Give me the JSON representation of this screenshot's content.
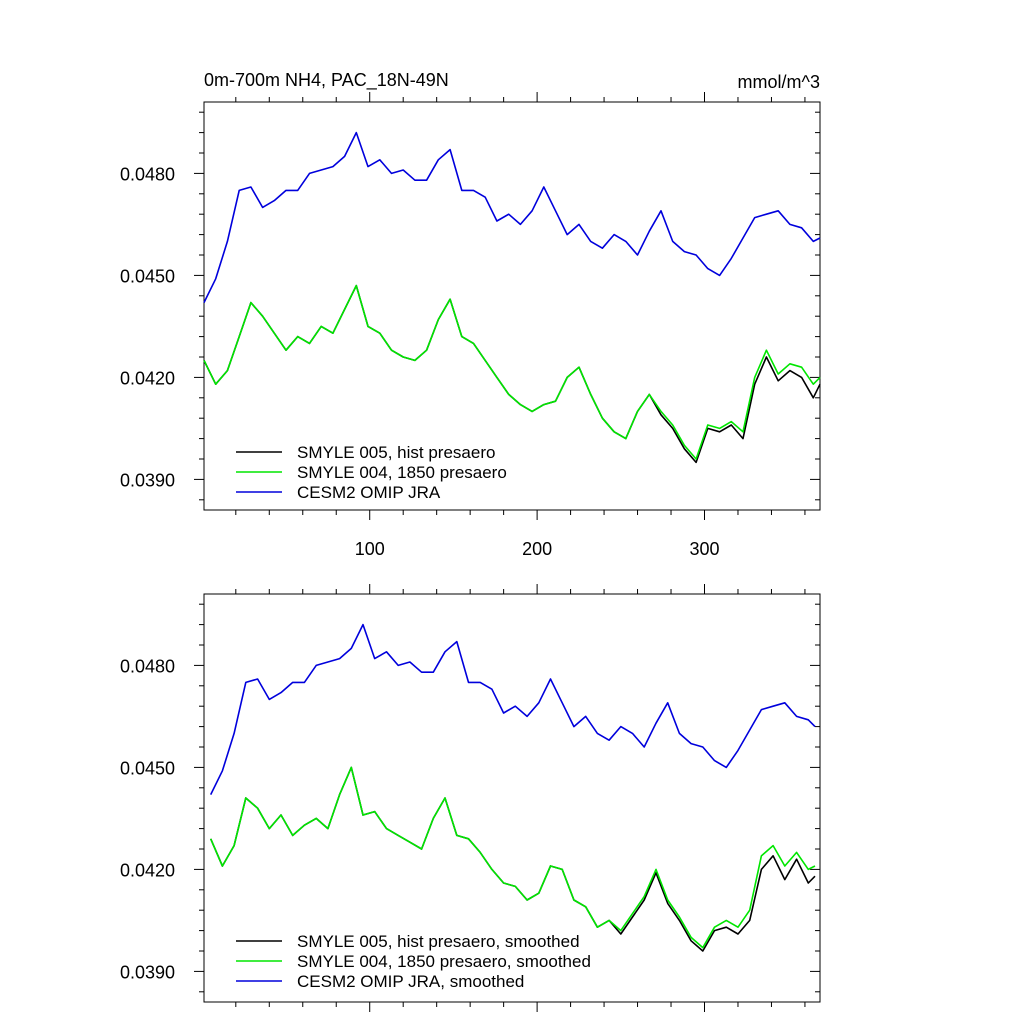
{
  "colors": {
    "black": "#000000",
    "green": "#00e600",
    "blue": "#0000dc"
  },
  "chart_data": [
    {
      "type": "line",
      "title": "0m-700m NH4, PAC_18N-49N",
      "units": "mmol/m^3",
      "xlim": [
        1,
        369
      ],
      "ylim": [
        0.0381,
        0.0501
      ],
      "xticks": [
        100,
        200,
        300
      ],
      "xtick_labels": [
        "100",
        "200",
        "300"
      ],
      "yticks": [
        0.039,
        0.042,
        0.045,
        0.048
      ],
      "ytick_labels": [
        "0.0390",
        "0.0420",
        "0.0450",
        "0.0480"
      ],
      "legend": "bottom-left",
      "grid": false,
      "x": [
        1,
        8,
        15,
        22,
        29,
        36,
        43,
        50,
        57,
        64,
        71,
        78,
        85,
        92,
        99,
        106,
        113,
        120,
        127,
        134,
        141,
        148,
        155,
        162,
        169,
        176,
        183,
        190,
        197,
        204,
        211,
        218,
        225,
        232,
        239,
        246,
        253,
        260,
        267,
        274,
        281,
        288,
        295,
        302,
        309,
        316,
        323,
        330,
        337,
        344,
        351,
        358,
        365,
        369
      ],
      "series": [
        {
          "name": "SMYLE 005, hist presaero",
          "color": "#000000",
          "values": [
            0.0425,
            0.0418,
            0.0422,
            0.0432,
            0.0442,
            0.0438,
            0.0433,
            0.0428,
            0.0432,
            0.043,
            0.0435,
            0.0433,
            0.044,
            0.0447,
            0.0435,
            0.0433,
            0.0428,
            0.0426,
            0.0425,
            0.0428,
            0.0437,
            0.0443,
            0.0432,
            0.043,
            0.0425,
            0.042,
            0.0415,
            0.0412,
            0.041,
            0.0412,
            0.0413,
            0.042,
            0.0423,
            0.0415,
            0.0408,
            0.0404,
            0.0402,
            0.041,
            0.0415,
            0.0409,
            0.0405,
            0.0399,
            0.0395,
            0.0405,
            0.0404,
            0.0406,
            0.0402,
            0.0418,
            0.0426,
            0.0419,
            0.0422,
            0.042,
            0.0414,
            0.0418
          ]
        },
        {
          "name": "SMYLE 004, 1850 presaero",
          "color": "#00e600",
          "values": [
            0.0425,
            0.0418,
            0.0422,
            0.0432,
            0.0442,
            0.0438,
            0.0433,
            0.0428,
            0.0432,
            0.043,
            0.0435,
            0.0433,
            0.044,
            0.0447,
            0.0435,
            0.0433,
            0.0428,
            0.0426,
            0.0425,
            0.0428,
            0.0437,
            0.0443,
            0.0432,
            0.043,
            0.0425,
            0.042,
            0.0415,
            0.0412,
            0.041,
            0.0412,
            0.0413,
            0.042,
            0.0423,
            0.0415,
            0.0408,
            0.0404,
            0.0402,
            0.041,
            0.0415,
            0.041,
            0.0406,
            0.04,
            0.0396,
            0.0406,
            0.0405,
            0.0407,
            0.0404,
            0.042,
            0.0428,
            0.0421,
            0.0424,
            0.0423,
            0.0418,
            0.042
          ]
        },
        {
          "name": "CESM2 OMIP JRA",
          "color": "#0000dc",
          "values": [
            0.0442,
            0.0449,
            0.046,
            0.0475,
            0.0476,
            0.047,
            0.0472,
            0.0475,
            0.0475,
            0.048,
            0.0481,
            0.0482,
            0.0485,
            0.0492,
            0.0482,
            0.0484,
            0.048,
            0.0481,
            0.0478,
            0.0478,
            0.0484,
            0.0487,
            0.0475,
            0.0475,
            0.0473,
            0.0466,
            0.0468,
            0.0465,
            0.0469,
            0.0476,
            0.0469,
            0.0462,
            0.0465,
            0.046,
            0.0458,
            0.0462,
            0.046,
            0.0456,
            0.0463,
            0.0469,
            0.046,
            0.0457,
            0.0456,
            0.0452,
            0.045,
            0.0455,
            0.0461,
            0.0467,
            0.0468,
            0.0469,
            0.0465,
            0.0464,
            0.046,
            0.0461
          ]
        }
      ]
    },
    {
      "type": "line",
      "title": "",
      "xlim": [
        1,
        369
      ],
      "ylim": [
        0.0381,
        0.0501
      ],
      "xticks": [
        100,
        200,
        300
      ],
      "xtick_labels": [
        "",
        "",
        ""
      ],
      "yticks": [
        0.039,
        0.042,
        0.045,
        0.048
      ],
      "ytick_labels": [
        "0.0390",
        "0.0420",
        "0.0450",
        "0.0480"
      ],
      "legend": "bottom-left",
      "grid": false,
      "x": [
        5,
        12,
        19,
        26,
        33,
        40,
        47,
        54,
        61,
        68,
        75,
        82,
        89,
        96,
        103,
        110,
        117,
        124,
        131,
        138,
        145,
        152,
        159,
        166,
        173,
        180,
        187,
        194,
        201,
        208,
        215,
        222,
        229,
        236,
        243,
        250,
        257,
        264,
        271,
        278,
        285,
        292,
        299,
        306,
        313,
        320,
        327,
        334,
        341,
        348,
        355,
        362,
        366
      ],
      "series": [
        {
          "name": "SMYLE 005, hist presaero, smoothed",
          "color": "#000000",
          "values": [
            0.0429,
            0.0421,
            0.0427,
            0.0441,
            0.0438,
            0.0432,
            0.0436,
            0.043,
            0.0433,
            0.0435,
            0.0432,
            0.0442,
            0.045,
            0.0436,
            0.0437,
            0.0432,
            0.043,
            0.0428,
            0.0426,
            0.0435,
            0.0441,
            0.043,
            0.0429,
            0.0425,
            0.042,
            0.0416,
            0.0415,
            0.0411,
            0.0413,
            0.0421,
            0.042,
            0.0411,
            0.0409,
            0.0403,
            0.0405,
            0.0401,
            0.0406,
            0.0411,
            0.0419,
            0.041,
            0.0405,
            0.0399,
            0.0396,
            0.0402,
            0.0403,
            0.0401,
            0.0405,
            0.042,
            0.0424,
            0.0417,
            0.0423,
            0.0416,
            0.0418
          ]
        },
        {
          "name": "SMYLE 004, 1850 presaero, smoothed",
          "color": "#00e600",
          "values": [
            0.0429,
            0.0421,
            0.0427,
            0.0441,
            0.0438,
            0.0432,
            0.0436,
            0.043,
            0.0433,
            0.0435,
            0.0432,
            0.0442,
            0.045,
            0.0436,
            0.0437,
            0.0432,
            0.043,
            0.0428,
            0.0426,
            0.0435,
            0.0441,
            0.043,
            0.0429,
            0.0425,
            0.042,
            0.0416,
            0.0415,
            0.0411,
            0.0413,
            0.0421,
            0.042,
            0.0411,
            0.0409,
            0.0403,
            0.0405,
            0.0402,
            0.0407,
            0.0412,
            0.042,
            0.0411,
            0.0406,
            0.04,
            0.0397,
            0.0403,
            0.0405,
            0.0403,
            0.0408,
            0.0424,
            0.0427,
            0.0421,
            0.0425,
            0.042,
            0.0421
          ]
        },
        {
          "name": "CESM2 OMIP JRA, smoothed",
          "color": "#0000dc",
          "values": [
            0.0442,
            0.0449,
            0.046,
            0.0475,
            0.0476,
            0.047,
            0.0472,
            0.0475,
            0.0475,
            0.048,
            0.0481,
            0.0482,
            0.0485,
            0.0492,
            0.0482,
            0.0484,
            0.048,
            0.0481,
            0.0478,
            0.0478,
            0.0484,
            0.0487,
            0.0475,
            0.0475,
            0.0473,
            0.0466,
            0.0468,
            0.0465,
            0.0469,
            0.0476,
            0.0469,
            0.0462,
            0.0465,
            0.046,
            0.0458,
            0.0462,
            0.046,
            0.0456,
            0.0463,
            0.0469,
            0.046,
            0.0457,
            0.0456,
            0.0452,
            0.045,
            0.0455,
            0.0461,
            0.0467,
            0.0468,
            0.0469,
            0.0465,
            0.0464,
            0.0462
          ]
        }
      ]
    }
  ]
}
